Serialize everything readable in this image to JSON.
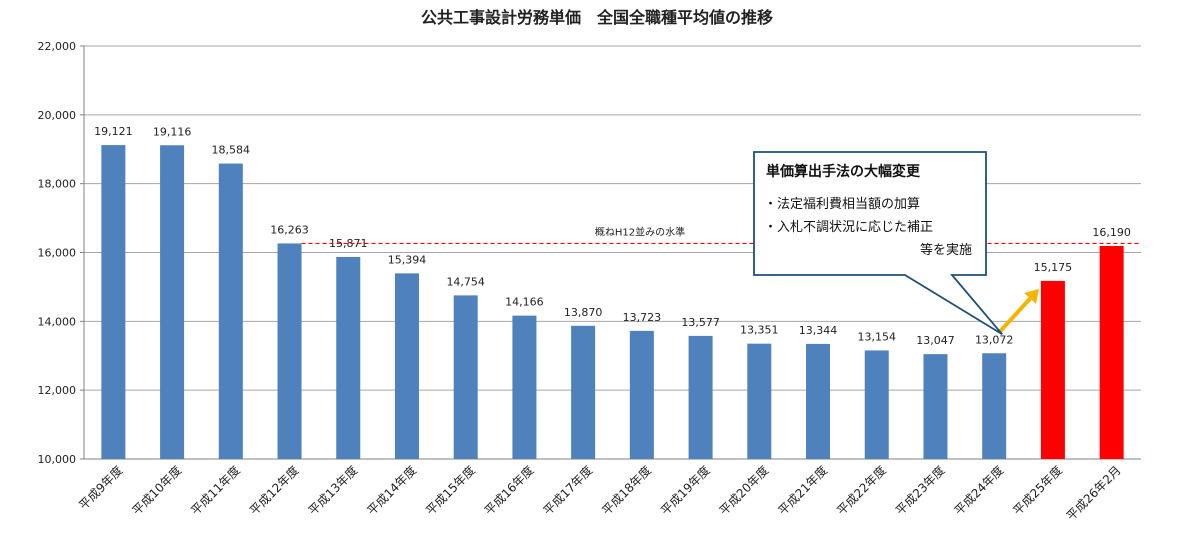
{
  "chart_data": {
    "type": "bar",
    "title": "公共工事設計労務単価　全国全職種平均値の推移",
    "xlabel": "",
    "ylabel": "",
    "ylim": [
      10000,
      22000
    ],
    "y_ticks": [
      "10,000",
      "12,000",
      "14,000",
      "16,000",
      "18,000",
      "20,000",
      "22,000"
    ],
    "y_tick_values": [
      10000,
      12000,
      14000,
      16000,
      18000,
      20000,
      22000
    ],
    "grid": true,
    "categories": [
      "平成9年度",
      "平成10年度",
      "平成11年度",
      "平成12年度",
      "平成13年度",
      "平成14年度",
      "平成15年度",
      "平成16年度",
      "平成17年度",
      "平成18年度",
      "平成19年度",
      "平成20年度",
      "平成21年度",
      "平成22年度",
      "平成23年度",
      "平成24年度",
      "平成25年度",
      "平成26年2月"
    ],
    "values": [
      19121,
      19116,
      18584,
      16263,
      15871,
      15394,
      14754,
      14166,
      13870,
      13723,
      13577,
      13351,
      13344,
      13154,
      13047,
      13072,
      15175,
      16190
    ],
    "value_labels": [
      "19,121",
      "19,116",
      "18,584",
      "16,263",
      "15,871",
      "15,394",
      "14,754",
      "14,166",
      "13,870",
      "13,723",
      "13,577",
      "13,351",
      "13,344",
      "13,154",
      "13,047",
      "13,072",
      "15,175",
      "16,190"
    ],
    "bar_colors": [
      "#4f81bd",
      "#4f81bd",
      "#4f81bd",
      "#4f81bd",
      "#4f81bd",
      "#4f81bd",
      "#4f81bd",
      "#4f81bd",
      "#4f81bd",
      "#4f81bd",
      "#4f81bd",
      "#4f81bd",
      "#4f81bd",
      "#4f81bd",
      "#4f81bd",
      "#4f81bd",
      "#ff0000",
      "#ff0000"
    ],
    "reference_line": {
      "value": 16263,
      "label": "概ねH12並みの水準",
      "color": "#ff0000"
    },
    "callout": {
      "title": "単価算出手法の大幅変更",
      "lines": [
        "・法定福利費相当額の加算",
        "・入札不調状況に応じた補正",
        "等を実施"
      ],
      "border_color": "#1f4e79"
    },
    "arrow_color": "#f5b400"
  }
}
